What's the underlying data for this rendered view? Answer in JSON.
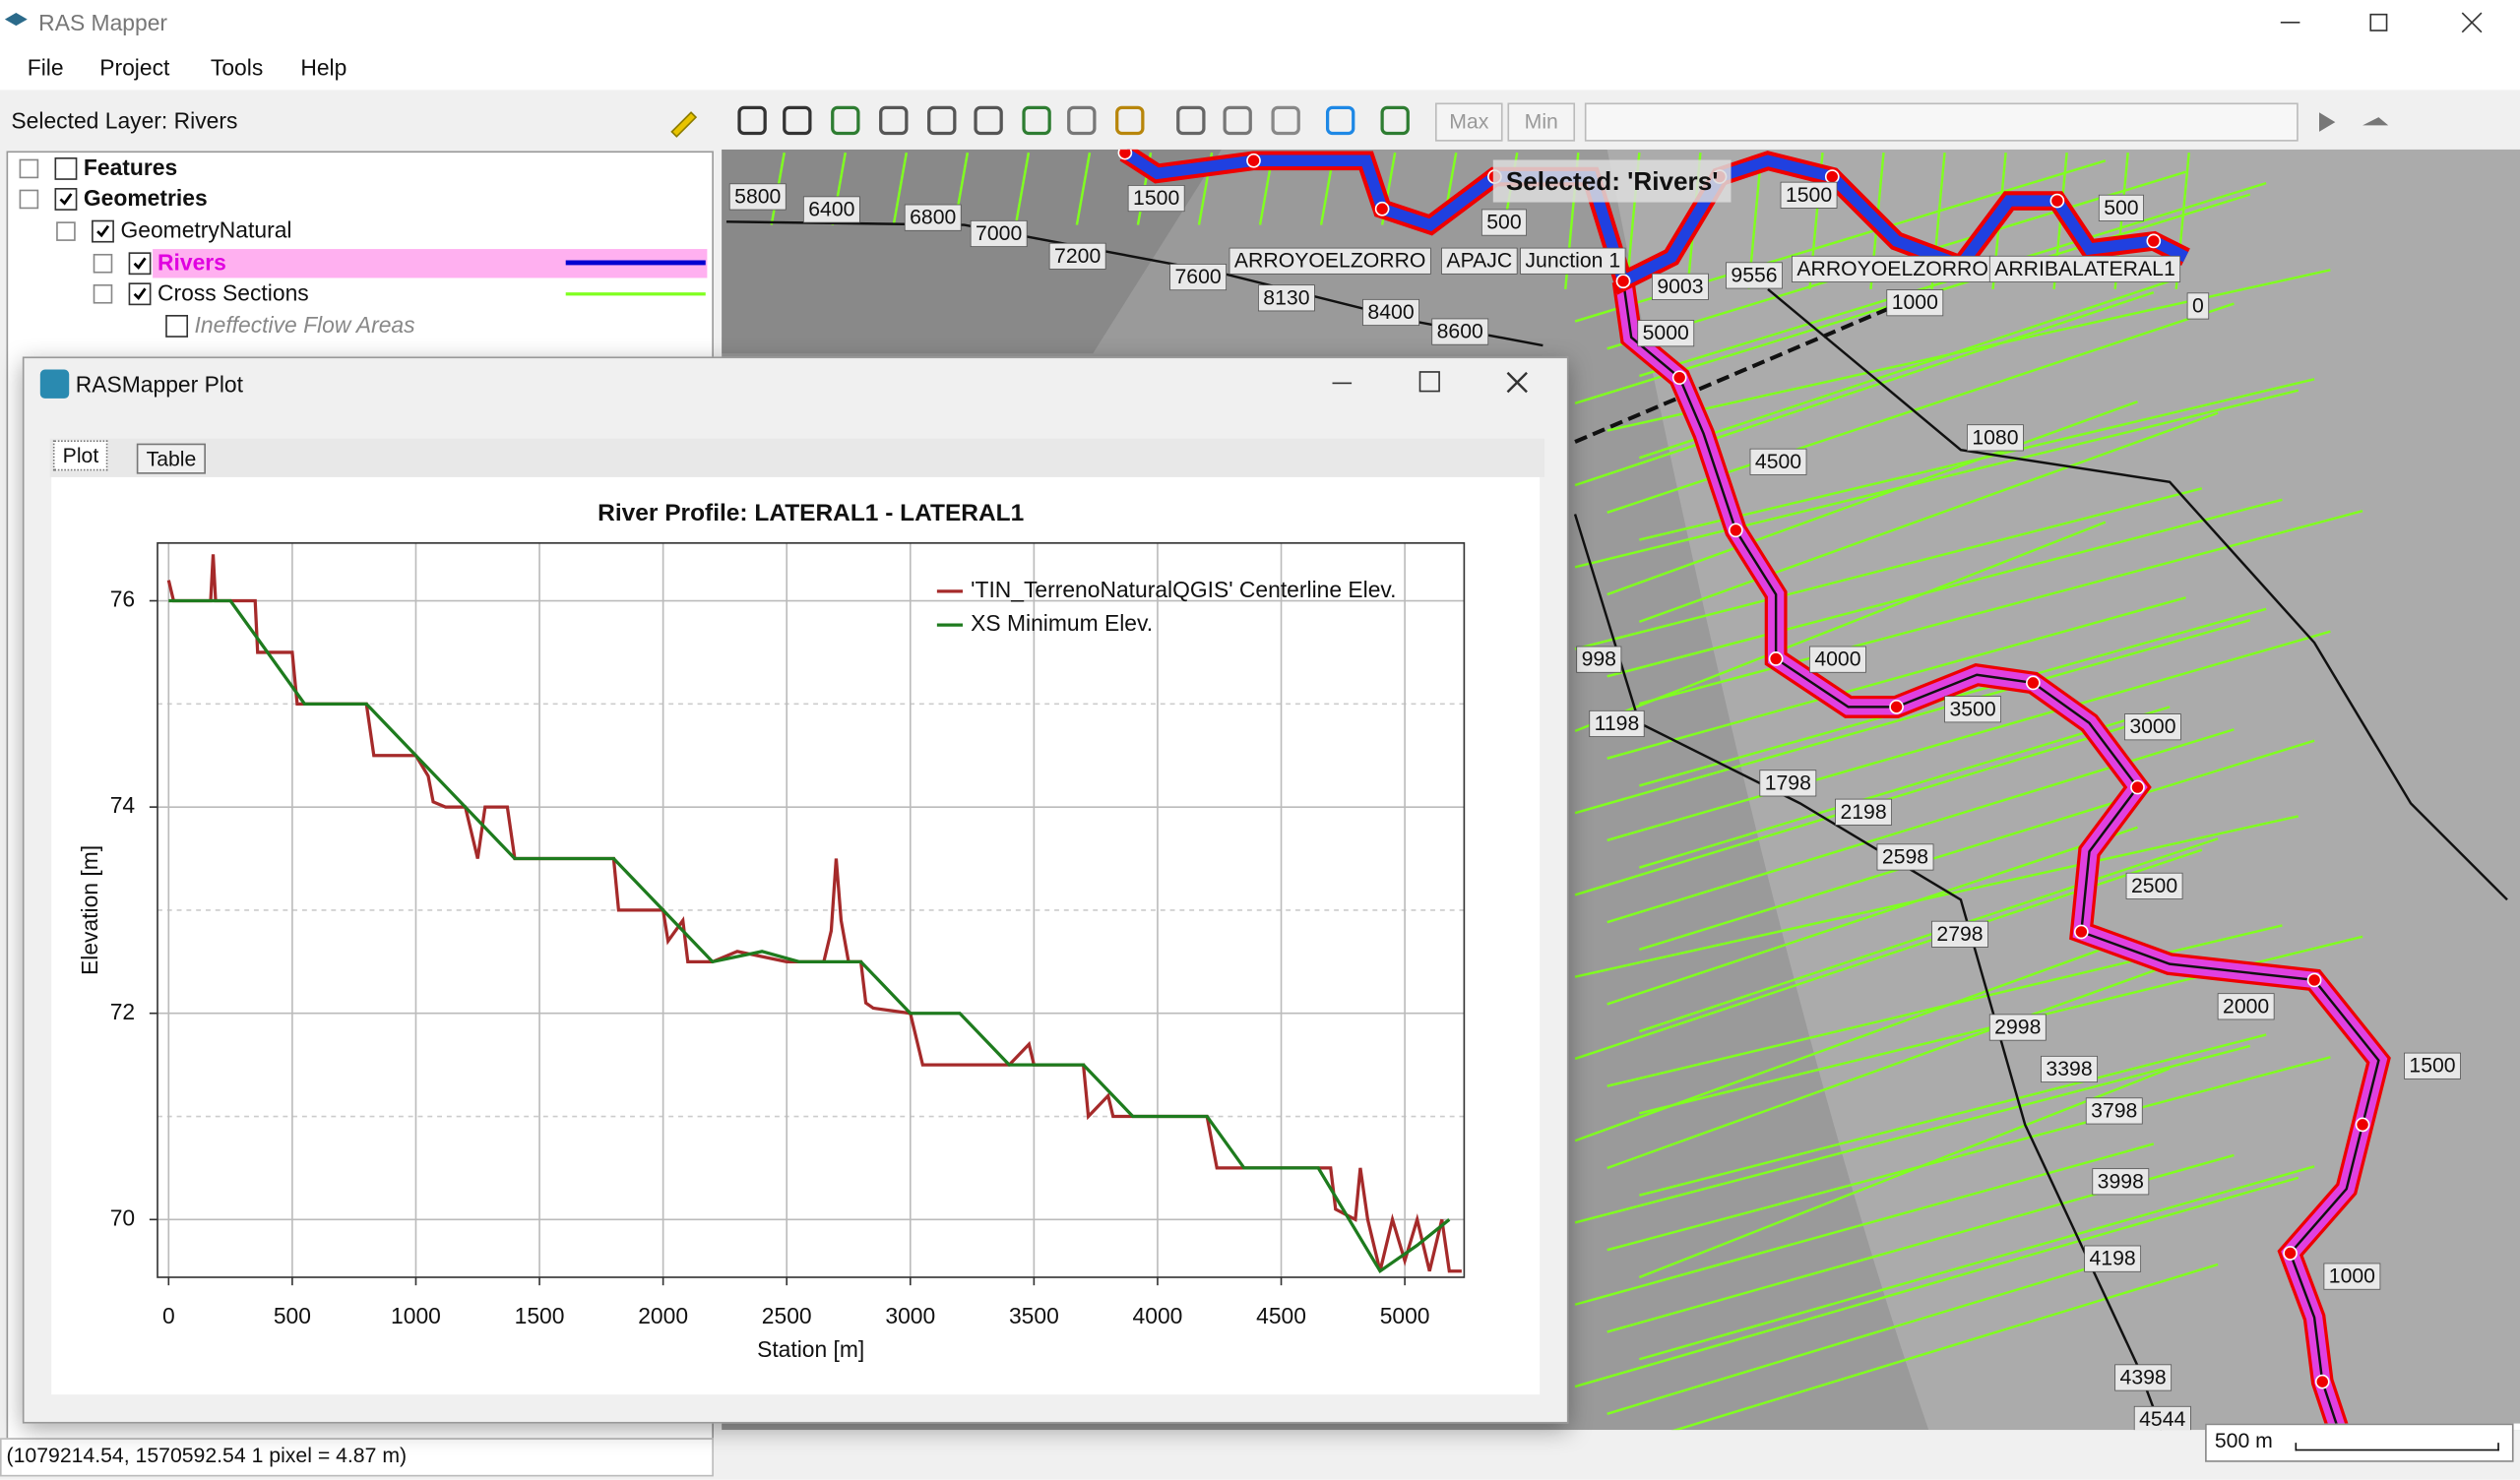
{
  "window": {
    "title": "RAS Mapper"
  },
  "menu": [
    "File",
    "Project",
    "Tools",
    "Help"
  ],
  "selected_layer": "Selected Layer: Rivers",
  "toolbar": {
    "max": "Max",
    "min": "Min"
  },
  "tree": [
    {
      "label": "Features",
      "checked": false
    },
    {
      "label": "Geometries",
      "checked": true
    },
    {
      "label": "GeometryNatural",
      "checked": true
    },
    {
      "label": "Rivers",
      "checked": true
    },
    {
      "label": "Cross Sections",
      "checked": true
    },
    {
      "label": "Ineffective Flow Areas",
      "checked": false
    }
  ],
  "map": {
    "selected_banner": "Selected: 'Rivers'",
    "labels": [
      "5800",
      "6400",
      "6800",
      "7000",
      "7200",
      "7600",
      "8130",
      "8400",
      "8600",
      "1500",
      "500",
      "ARROYOELZORRO",
      "APAJC",
      "Junction 1",
      "9003",
      "9556",
      "ARROYOELZORRO",
      "ARRIBALATERAL1",
      "1000",
      "0",
      "1500",
      "500",
      "5000",
      "1080",
      "4500",
      "4000",
      "3500",
      "3000",
      "2500",
      "2000",
      "1500",
      "1000",
      "998",
      "1198",
      "1798",
      "2198",
      "2598",
      "2798",
      "2998",
      "3398",
      "3798",
      "3998",
      "4198",
      "4398",
      "4544"
    ],
    "scale": "500 m"
  },
  "status": "(1079214.54, 1570592.54  1 pixel = 4.87 m)",
  "plot_window": {
    "title": "RASMapper Plot",
    "tabs": [
      "Plot",
      "Table"
    ],
    "chart_data": {
      "type": "line",
      "title": "River Profile: LATERAL1 - LATERAL1",
      "x_label": "Station [m]",
      "y_label": "Elevation [m]",
      "xlim": [
        -45,
        5240
      ],
      "ylim": [
        69.44,
        76.56
      ],
      "xticks": [
        0,
        500,
        1000,
        1500,
        2000,
        2500,
        3000,
        3500,
        4000,
        4500,
        5000
      ],
      "yticks": [
        70,
        72,
        74,
        76
      ],
      "y_minor_ticks": [
        71,
        73,
        75
      ],
      "grid": true,
      "legend": "upper right",
      "series": [
        {
          "name": "'TIN_TerrenoNaturalQGIS' Centerline Elev.",
          "color": "#a52a2a",
          "x": [
            0,
            20,
            170,
            180,
            190,
            350,
            360,
            500,
            520,
            800,
            830,
            1000,
            1050,
            1070,
            1120,
            1200,
            1250,
            1280,
            1370,
            1400,
            1800,
            1820,
            2000,
            2020,
            2080,
            2100,
            2200,
            2300,
            2500,
            2650,
            2680,
            2700,
            2720,
            2750,
            2800,
            2820,
            2850,
            3000,
            3050,
            3400,
            3480,
            3500,
            3700,
            3720,
            3800,
            3820,
            4200,
            4240,
            4500,
            4700,
            4720,
            4800,
            4820,
            4850,
            4900,
            4950,
            5000,
            5050,
            5100,
            5150,
            5180,
            5230
          ],
          "values": [
            76.2,
            76,
            76,
            76.45,
            76,
            76,
            75.5,
            75.5,
            75,
            75,
            74.5,
            74.5,
            74.3,
            74.05,
            74,
            74,
            73.5,
            74,
            74,
            73.5,
            73.5,
            73,
            73,
            72.7,
            72.9,
            72.5,
            72.5,
            72.6,
            72.5,
            72.5,
            72.8,
            73.5,
            72.9,
            72.5,
            72.5,
            72.1,
            72.05,
            72,
            71.5,
            71.5,
            71.7,
            71.5,
            71.5,
            71,
            71.2,
            71,
            71,
            70.5,
            70.5,
            70.5,
            70.1,
            70,
            70.5,
            70,
            69.5,
            70,
            69.6,
            70,
            69.5,
            70,
            69.5,
            69.5
          ]
        },
        {
          "name": "XS Minimum Elev.",
          "color": "#1e7b1e",
          "x": [
            0,
            250,
            550,
            800,
            1000,
            1200,
            1400,
            1800,
            2000,
            2200,
            2400,
            2550,
            2800,
            3000,
            3200,
            3400,
            3700,
            3900,
            4200,
            4350,
            4650,
            4900,
            5050,
            5180
          ],
          "values": [
            76,
            76,
            75,
            75,
            74.5,
            74,
            73.5,
            73.5,
            73,
            72.5,
            72.6,
            72.5,
            72.5,
            72,
            72,
            71.5,
            71.5,
            71,
            71,
            70.5,
            70.5,
            69.5,
            69.75,
            70
          ]
        }
      ]
    }
  }
}
